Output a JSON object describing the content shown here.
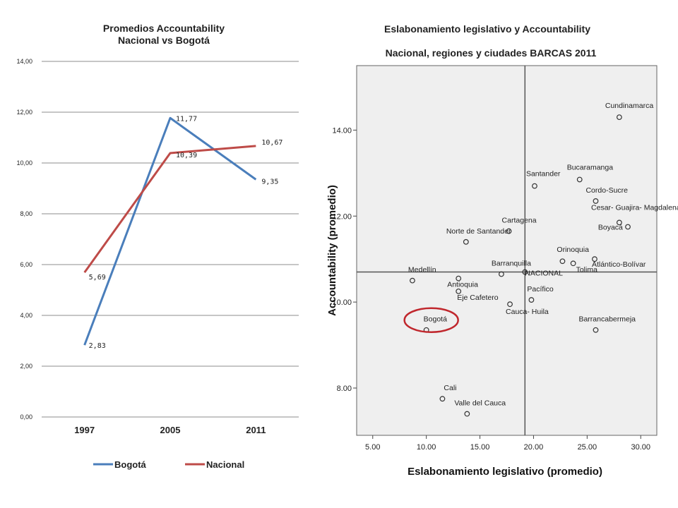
{
  "chart_data": [
    {
      "type": "line",
      "title": "Promedios Accountability",
      "subtitle": "Nacional vs Bogotá",
      "categories": [
        "1997",
        "2005",
        "2011"
      ],
      "ylim": [
        0,
        14
      ],
      "yticks": [
        "0,00",
        "2,00",
        "4,00",
        "6,00",
        "8,00",
        "10,00",
        "12,00",
        "14,00"
      ],
      "grid": true,
      "legend_position": "bottom",
      "series": [
        {
          "name": "Bogotá",
          "values": [
            2.83,
            11.77,
            9.35
          ],
          "labels": [
            "2,83",
            "11,77",
            "9,35"
          ],
          "color": "#4a7ebb"
        },
        {
          "name": "Nacional",
          "values": [
            5.69,
            10.39,
            10.67
          ],
          "labels": [
            "5,69",
            "10,39",
            "10,67"
          ],
          "color": "#be4b48"
        }
      ]
    },
    {
      "type": "scatter",
      "title": "Eslabonamiento legislativo y Accountability",
      "subtitle": "Nacional, regiones y ciudades BARCAS 2011",
      "xlabel": "Eslabonamiento legislativo (promedio)",
      "ylabel": "Accountability (promedio)",
      "xlim": [
        3.5,
        31.5
      ],
      "ylim": [
        6.9,
        15.5
      ],
      "xticks": [
        "5.00",
        "10.00",
        "15.00",
        "20.00",
        "25.00",
        "30.00"
      ],
      "yticks": [
        "8.00",
        "10.00",
        "12.00",
        "14.00"
      ],
      "reference_lines": {
        "x": 19.2,
        "y": 10.7
      },
      "highlight": "Bogotá",
      "points": [
        {
          "label": "Cundinamarca",
          "x": 28.0,
          "y": 14.3
        },
        {
          "label": "Santander",
          "x": 20.1,
          "y": 12.7
        },
        {
          "label": "Bucaramanga",
          "x": 24.3,
          "y": 12.85
        },
        {
          "label": "Cordo-Sucre",
          "x": 25.8,
          "y": 12.35
        },
        {
          "label": "Cesar- Guajira- Magdalena",
          "x": 28.8,
          "y": 11.75
        },
        {
          "label": "Boyacá",
          "x": 28.0,
          "y": 11.85
        },
        {
          "label": "Cartagena",
          "x": 17.7,
          "y": 11.65
        },
        {
          "label": "Norte de Santander",
          "x": 13.7,
          "y": 11.4
        },
        {
          "label": "Orinoquia",
          "x": 22.7,
          "y": 10.95
        },
        {
          "label": "Tolima",
          "x": 23.7,
          "y": 10.9
        },
        {
          "label": "Atlántico-Bolívar",
          "x": 25.7,
          "y": 11.0
        },
        {
          "label": "Barranquilla",
          "x": 17.0,
          "y": 10.65
        },
        {
          "label": "NACIONAL",
          "x": 19.2,
          "y": 10.7
        },
        {
          "label": "Medellín",
          "x": 8.7,
          "y": 10.5
        },
        {
          "label": "Antioquia",
          "x": 13.0,
          "y": 10.55
        },
        {
          "label": "Eje Cafetero",
          "x": 13.0,
          "y": 10.25
        },
        {
          "label": "Pacífico",
          "x": 19.8,
          "y": 10.05
        },
        {
          "label": "Cauca- Huila",
          "x": 17.8,
          "y": 9.95
        },
        {
          "label": "Bogotá",
          "x": 10.0,
          "y": 9.35
        },
        {
          "label": "Barrancabermeja",
          "x": 25.8,
          "y": 9.35
        },
        {
          "label": "Cali",
          "x": 11.5,
          "y": 7.75
        },
        {
          "label": "Valle del Cauca",
          "x": 13.8,
          "y": 7.4
        }
      ]
    }
  ]
}
